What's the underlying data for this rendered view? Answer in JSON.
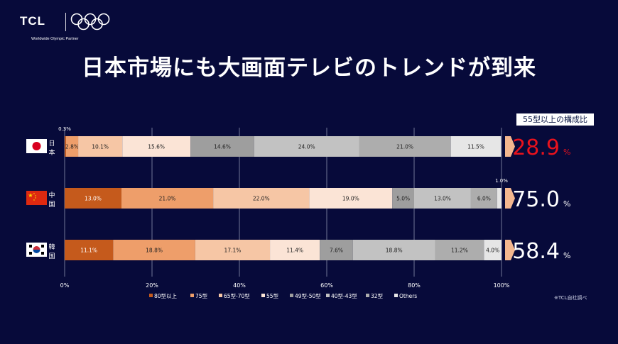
{
  "logo": {
    "brand": "TCL",
    "subtitle": "Worldwide Olympic Partner"
  },
  "title": "日本市場にも大画面テレビのトレンドが到来",
  "badge": "55型以上の構成比",
  "note": "※TCL自社調べ",
  "colors": {
    "background": "#070a3a",
    "accent_red": "#e8121d",
    "arrow": "#f4b78f",
    "segments": [
      "#c55a1c",
      "#ee9e6a",
      "#f6c6a5",
      "#fbe4d6",
      "#9e9e9e",
      "#c2c2c2",
      "#adadad",
      "#e6e6e6"
    ]
  },
  "chart_data": {
    "type": "bar",
    "orientation": "horizontal",
    "stacked": true,
    "xlim": [
      0,
      100
    ],
    "xticks": [
      "0%",
      "20%",
      "40%",
      "60%",
      "80%",
      "100%"
    ],
    "legend_position": "bottom",
    "series_names": [
      "80型以上",
      "75型",
      "65型-70型",
      "55型",
      "49型-50型",
      "40型-43型",
      "32型",
      "Others"
    ],
    "rows": [
      {
        "country": "日本",
        "label_chars": [
          "日",
          "本"
        ],
        "flag": "jp-flag",
        "values": [
          0.3,
          2.8,
          10.1,
          15.6,
          14.6,
          24.0,
          21.0,
          11.5
        ],
        "labels": [
          "0.3%",
          "2.8%",
          "10.1%",
          "15.6%",
          "14.6%",
          "24.0%",
          "21.0%",
          "11.5%"
        ],
        "share_value": "28.9",
        "share_unit": "%",
        "share_color": "#e8121d"
      },
      {
        "country": "中国",
        "label_chars": [
          "中",
          "国"
        ],
        "flag": "cn-flag",
        "values": [
          13.0,
          21.0,
          22.0,
          19.0,
          5.0,
          13.0,
          6.0,
          1.0
        ],
        "labels": [
          "13.0%",
          "21.0%",
          "22.0%",
          "19.0%",
          "5.0%",
          "13.0%",
          "6.0%",
          "1.0%"
        ],
        "share_value": "75.0",
        "share_unit": "%",
        "share_color": "#ffffff"
      },
      {
        "country": "韓国",
        "label_chars": [
          "韓",
          "国"
        ],
        "flag": "kr-flag",
        "values": [
          11.1,
          18.8,
          17.1,
          11.4,
          7.6,
          18.8,
          11.2,
          4.0
        ],
        "labels": [
          "11.1%",
          "18.8%",
          "17.1%",
          "11.4%",
          "7.6%",
          "18.8%",
          "11.2%",
          "4.0%"
        ],
        "share_value": "58.4",
        "share_unit": "%",
        "share_color": "#ffffff"
      }
    ]
  }
}
